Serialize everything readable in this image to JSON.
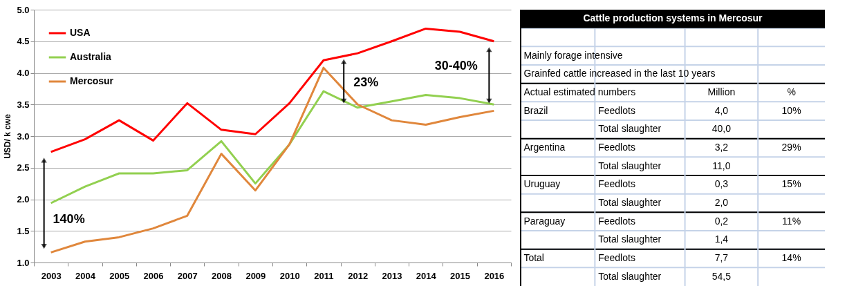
{
  "chart_data": [
    {
      "type": "line",
      "categories": [
        "2003",
        "2004",
        "2005",
        "2006",
        "2007",
        "2008",
        "2009",
        "2010",
        "2011",
        "2012",
        "2013",
        "2014",
        "2015",
        "2016"
      ],
      "series": [
        {
          "name": "USA",
          "color": "#ff0000",
          "values": [
            2.75,
            2.95,
            3.25,
            2.93,
            3.52,
            3.1,
            3.03,
            3.52,
            4.2,
            4.31,
            4.5,
            4.7,
            4.65,
            4.5
          ]
        },
        {
          "name": "Australia",
          "color": "#92d050",
          "values": [
            1.94,
            2.2,
            2.41,
            2.41,
            2.46,
            2.92,
            2.25,
            2.87,
            3.71,
            3.45,
            3.55,
            3.65,
            3.6,
            3.5
          ]
        },
        {
          "name": "Mercosur",
          "color": "#e0873c",
          "values": [
            1.16,
            1.33,
            1.4,
            1.54,
            1.74,
            2.72,
            2.14,
            2.87,
            4.08,
            3.5,
            3.25,
            3.18,
            3.3,
            3.4
          ]
        }
      ],
      "ylabel": "USD/ k cwe",
      "ylim": [
        1,
        5
      ],
      "yticks": [
        {
          "value": 1,
          "label": "1.0"
        },
        {
          "value": 1.5,
          "label": "1.5"
        },
        {
          "value": 2,
          "label": "2.0"
        },
        {
          "value": 2.5,
          "label": "2.5"
        },
        {
          "value": 3,
          "label": "3.0"
        },
        {
          "value": 3.5,
          "label": "3.5"
        },
        {
          "value": 4,
          "label": "4.0"
        },
        {
          "value": 4.5,
          "label": "4.5"
        },
        {
          "value": 5,
          "label": "5.0"
        }
      ],
      "grid": "y",
      "legend": "top left",
      "annotations": [
        "140%",
        {
          "text": "23%",
          "x": "2012",
          "y": 4.31
        },
        {
          "text": "30-40%",
          "x": "2016",
          "y": 4.5
        }
      ]
    },
    {
      "type": "other",
      "title": "Cattle production systems in Mercosur",
      "annotations": [
        "Mainly forage intensive",
        "Grainfed cattle increased in the last 10 years",
        "Actual estimated numbers",
        "Million",
        "%",
        "Brazil",
        "Feedlots",
        "4,0",
        "10%",
        "Total slaughter",
        "40,0",
        "Argentina",
        "Feedlots",
        "3,2",
        "29%",
        "Total slaughter",
        "11,0",
        "Uruguay",
        "Feedlots",
        "0,3",
        "15%",
        "Total slaughter",
        "2,0",
        "Paraguay",
        "Feedlots",
        "0,2",
        "11%",
        "Total slaughter",
        "1,4",
        "Total",
        "Feedlots",
        "7,7",
        "14%",
        "Total slaughter",
        "54,5"
      ]
    }
  ]
}
